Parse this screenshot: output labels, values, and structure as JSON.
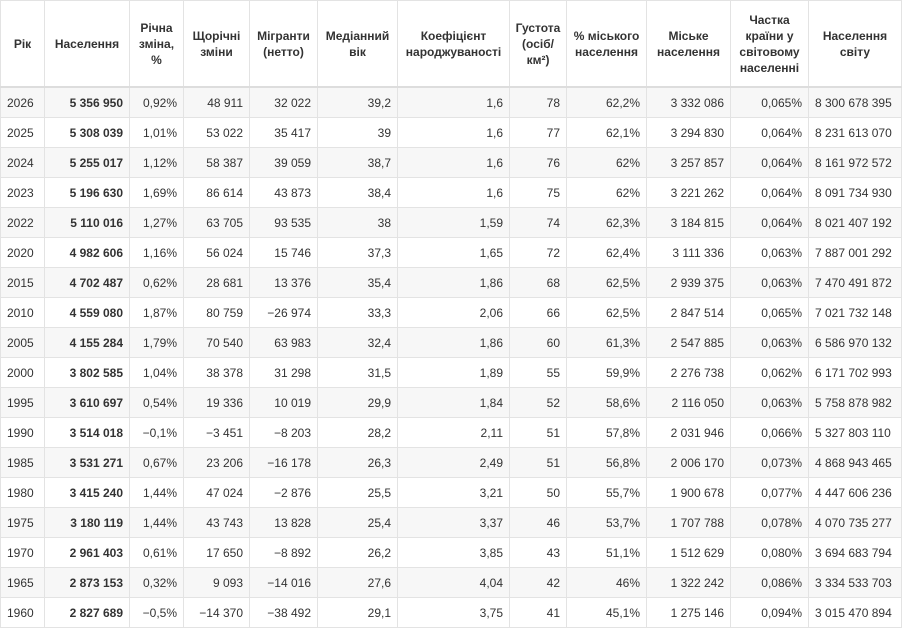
{
  "table": {
    "headers": [
      "Рік",
      "Населення",
      "Річна зміна, %",
      "Щорічні зміни",
      "Мігранти (нетто)",
      "Медіанний вік",
      "Коефіцієнт народжуваності",
      "Густота (осіб/км²)",
      "% міського населення",
      "Міське населення",
      "Частка країни у світовому населенні",
      "Населення світу"
    ],
    "rows": [
      [
        "2026",
        "5 356 950",
        "0,92%",
        "48 911",
        "32 022",
        "39,2",
        "1,6",
        "78",
        "62,2%",
        "3 332 086",
        "0,065%",
        "8 300 678 395"
      ],
      [
        "2025",
        "5 308 039",
        "1,01%",
        "53 022",
        "35 417",
        "39",
        "1,6",
        "77",
        "62,1%",
        "3 294 830",
        "0,064%",
        "8 231 613 070"
      ],
      [
        "2024",
        "5 255 017",
        "1,12%",
        "58 387",
        "39 059",
        "38,7",
        "1,6",
        "76",
        "62%",
        "3 257 857",
        "0,064%",
        "8 161 972 572"
      ],
      [
        "2023",
        "5 196 630",
        "1,69%",
        "86 614",
        "43 873",
        "38,4",
        "1,6",
        "75",
        "62%",
        "3 221 262",
        "0,064%",
        "8 091 734 930"
      ],
      [
        "2022",
        "5 110 016",
        "1,27%",
        "63 705",
        "93 535",
        "38",
        "1,59",
        "74",
        "62,3%",
        "3 184 815",
        "0,064%",
        "8 021 407 192"
      ],
      [
        "2020",
        "4 982 606",
        "1,16%",
        "56 024",
        "15 746",
        "37,3",
        "1,65",
        "72",
        "62,4%",
        "3 111 336",
        "0,063%",
        "7 887 001 292"
      ],
      [
        "2015",
        "4 702 487",
        "0,62%",
        "28 681",
        "13 376",
        "35,4",
        "1,86",
        "68",
        "62,5%",
        "2 939 375",
        "0,063%",
        "7 470 491 872"
      ],
      [
        "2010",
        "4 559 080",
        "1,87%",
        "80 759",
        "−26 974",
        "33,3",
        "2,06",
        "66",
        "62,5%",
        "2 847 514",
        "0,065%",
        "7 021 732 148"
      ],
      [
        "2005",
        "4 155 284",
        "1,79%",
        "70 540",
        "63 983",
        "32,4",
        "1,86",
        "60",
        "61,3%",
        "2 547 885",
        "0,063%",
        "6 586 970 132"
      ],
      [
        "2000",
        "3 802 585",
        "1,04%",
        "38 378",
        "31 298",
        "31,5",
        "1,89",
        "55",
        "59,9%",
        "2 276 738",
        "0,062%",
        "6 171 702 993"
      ],
      [
        "1995",
        "3 610 697",
        "0,54%",
        "19 336",
        "10 019",
        "29,9",
        "1,84",
        "52",
        "58,6%",
        "2 116 050",
        "0,063%",
        "5 758 878 982"
      ],
      [
        "1990",
        "3 514 018",
        "−0,1%",
        "−3 451",
        "−8 203",
        "28,2",
        "2,11",
        "51",
        "57,8%",
        "2 031 946",
        "0,066%",
        "5 327 803 110"
      ],
      [
        "1985",
        "3 531 271",
        "0,67%",
        "23 206",
        "−16 178",
        "26,3",
        "2,49",
        "51",
        "56,8%",
        "2 006 170",
        "0,073%",
        "4 868 943 465"
      ],
      [
        "1980",
        "3 415 240",
        "1,44%",
        "47 024",
        "−2 876",
        "25,5",
        "3,21",
        "50",
        "55,7%",
        "1 900 678",
        "0,077%",
        "4 447 606 236"
      ],
      [
        "1975",
        "3 180 119",
        "1,44%",
        "43 743",
        "13 828",
        "25,4",
        "3,37",
        "46",
        "53,7%",
        "1 707 788",
        "0,078%",
        "4 070 735 277"
      ],
      [
        "1970",
        "2 961 403",
        "0,61%",
        "17 650",
        "−8 892",
        "26,2",
        "3,85",
        "43",
        "51,1%",
        "1 512 629",
        "0,080%",
        "3 694 683 794"
      ],
      [
        "1965",
        "2 873 153",
        "0,32%",
        "9 093",
        "−14 016",
        "27,6",
        "4,04",
        "42",
        "46%",
        "1 322 242",
        "0,086%",
        "3 334 533 703"
      ],
      [
        "1960",
        "2 827 689",
        "−0,5%",
        "−14 370",
        "−38 492",
        "29,1",
        "3,75",
        "41",
        "45,1%",
        "1 275 146",
        "0,094%",
        "3 015 470 894"
      ]
    ]
  }
}
